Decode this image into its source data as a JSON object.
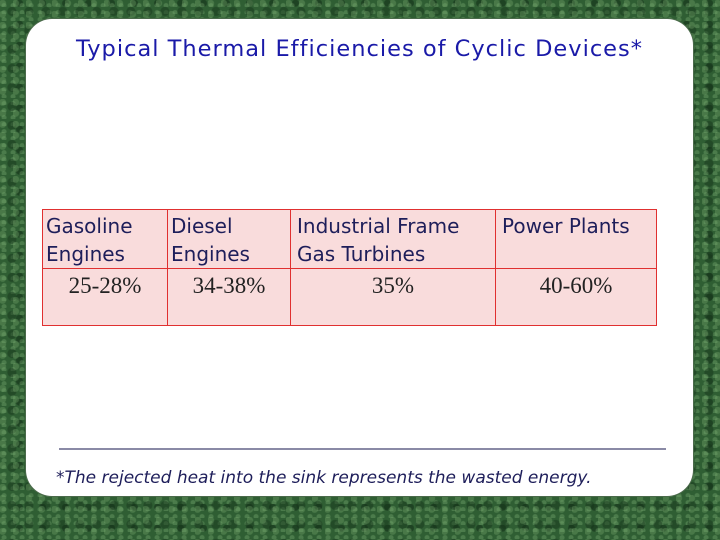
{
  "slide": {
    "title": "Typical Thermal Efficiencies of Cyclic Devices*",
    "table": {
      "headers": [
        [
          "Gasoline",
          "Engines"
        ],
        [
          "Diesel",
          "Engines"
        ],
        [
          "Industrial Frame",
          "Gas Turbines"
        ],
        [
          "Power Plants",
          ""
        ]
      ],
      "values": [
        "25-28%",
        "34-38%",
        "35%",
        "40-60%"
      ]
    },
    "footnote": "*The rejected heat into the sink represents the wasted energy."
  },
  "colors": {
    "title": "#1a1aa8",
    "table_border": "#e03030",
    "table_fill": "#f9dcdc",
    "background": "#2f5e33"
  }
}
